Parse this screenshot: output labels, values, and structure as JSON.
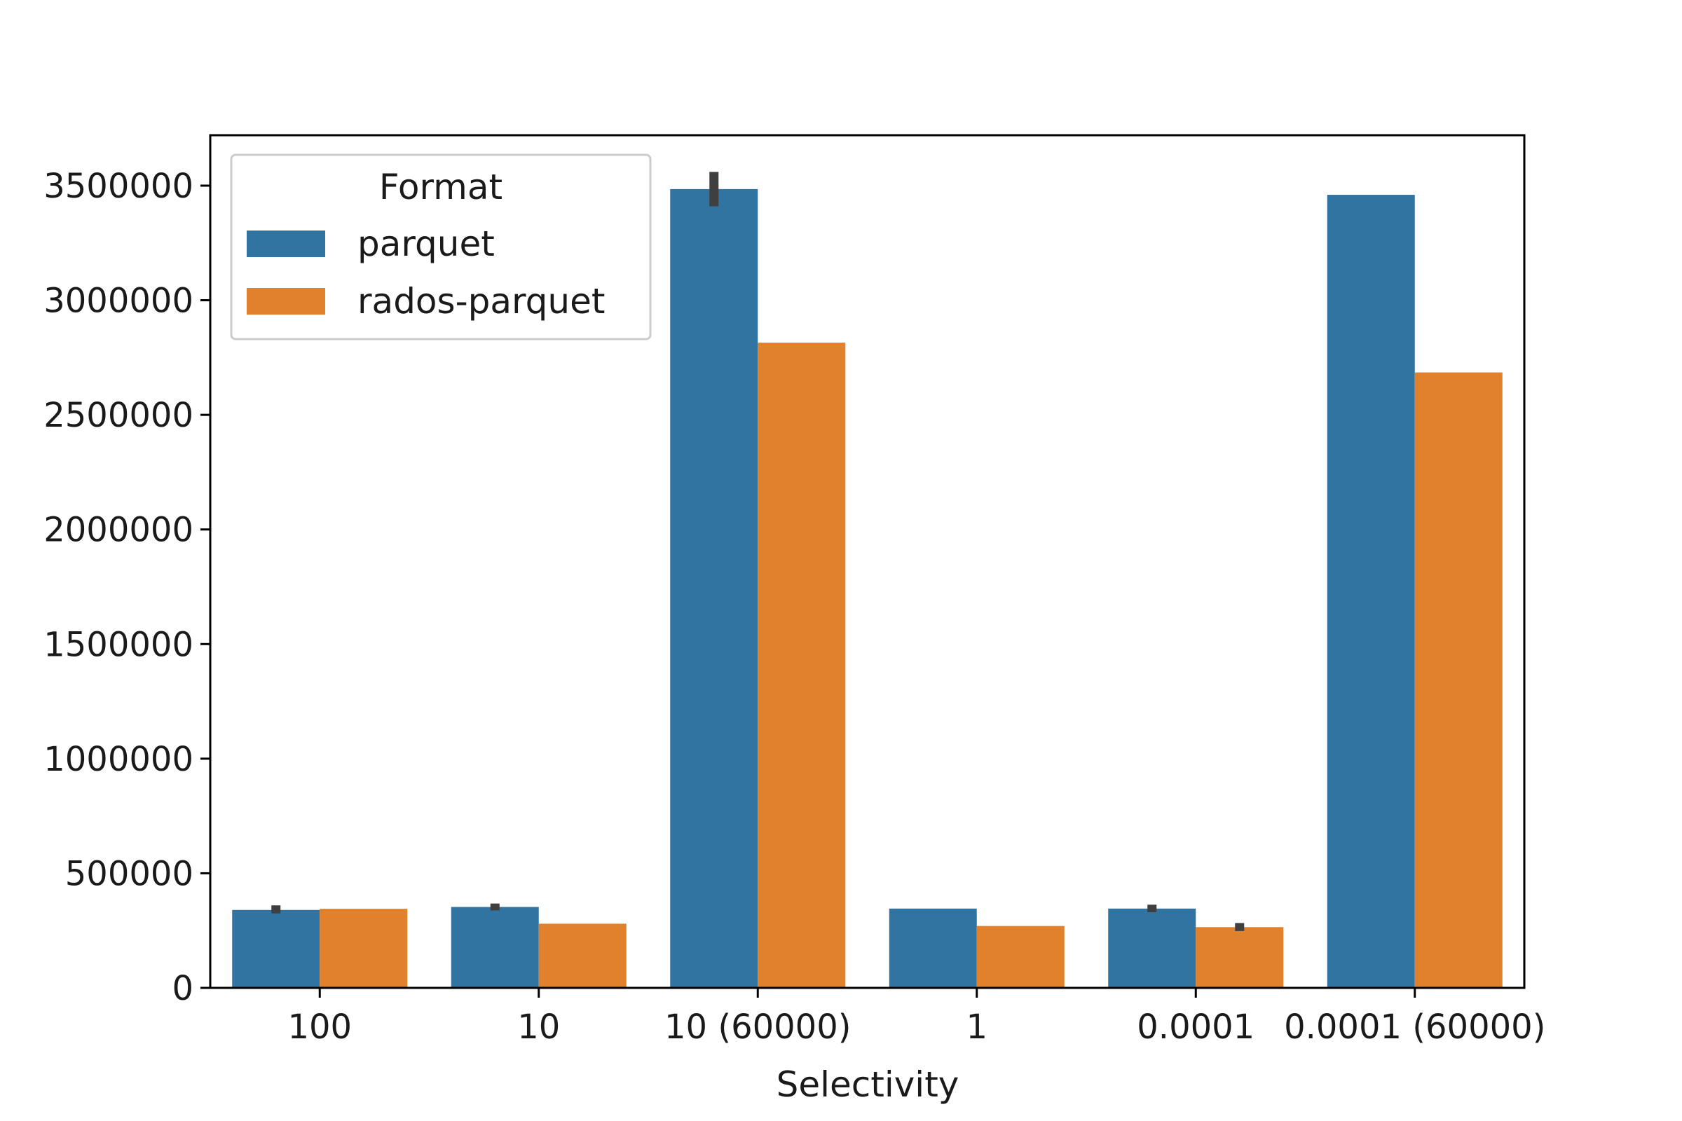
{
  "chart_data": {
    "type": "bar",
    "title": "",
    "xlabel": "Selectivity",
    "ylabel": "",
    "categories": [
      "100",
      "10",
      "10 (60000)",
      "1",
      "0.0001",
      "0.0001 (60000)"
    ],
    "series": [
      {
        "name": "parquet",
        "color": "#3274a1",
        "values": [
          340000,
          353000,
          3485000,
          346000,
          346000,
          3460000
        ],
        "error": [
          [
            325000,
            360000
          ],
          [
            338000,
            368000
          ],
          [
            3410000,
            3560000
          ],
          null,
          [
            330000,
            363000
          ],
          null
        ]
      },
      {
        "name": "rados-parquet",
        "color": "#e1812c",
        "values": [
          345000,
          280000,
          2815000,
          270000,
          265000,
          2685000
        ],
        "error": [
          null,
          null,
          null,
          null,
          [
            248000,
            283000
          ],
          null
        ]
      }
    ],
    "yticks": [
      0,
      500000,
      1000000,
      1500000,
      2000000,
      2500000,
      3000000,
      3500000
    ],
    "ylim": [
      0,
      3720000
    ],
    "legend": {
      "title": "Format",
      "placement": "top-left"
    },
    "grid": false
  }
}
